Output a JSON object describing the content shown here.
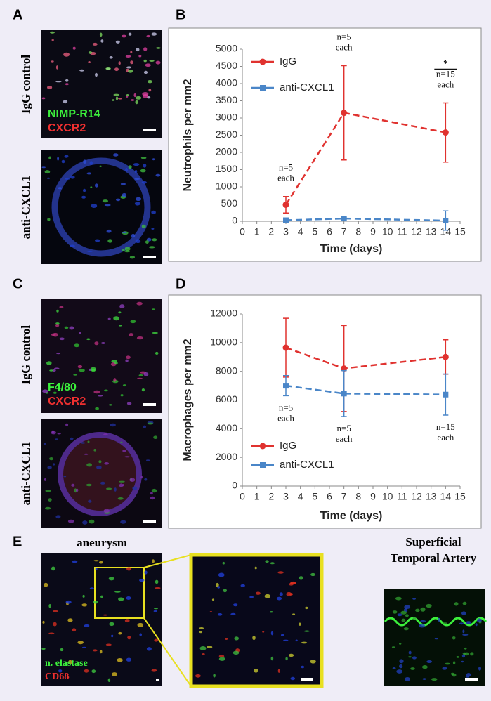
{
  "figure": {
    "panel_labels": [
      "A",
      "B",
      "C",
      "D",
      "E"
    ],
    "a": {
      "label_top": "IgG control",
      "label_bottom": "anti-CXCL1",
      "stain_green": "NIMP-R14",
      "stain_red": "CXCR2"
    },
    "c": {
      "label_top": "IgG control",
      "label_bottom": "anti-CXCL1",
      "stain_green": "F4/80",
      "stain_red": "CXCR2"
    },
    "e": {
      "title": "aneurysm",
      "stain_green": "n. elastase",
      "stain_red": "CD68",
      "right_title": [
        "Superficial",
        "Temporal Artery"
      ]
    }
  },
  "chart_data": [
    {
      "type": "line",
      "ylabel": "Neutrophils per mm2",
      "xlabel": "Time (days)",
      "xlim": [
        0,
        15
      ],
      "xticks": [
        0,
        1,
        2,
        3,
        4,
        5,
        6,
        7,
        8,
        9,
        10,
        11,
        12,
        13,
        14,
        15
      ],
      "ylim": [
        0,
        5000
      ],
      "yticks": [
        0,
        500,
        1000,
        1500,
        2000,
        2500,
        3000,
        3500,
        4000,
        4500,
        5000
      ],
      "legend": "upper left",
      "x": [
        3,
        7,
        14
      ],
      "series": [
        {
          "name": "IgG",
          "color": "#e0322f",
          "marker": "circle",
          "values": [
            480,
            3150,
            2580
          ],
          "errors": [
            240,
            1370,
            860
          ]
        },
        {
          "name": "anti-CXCL1",
          "color": "#4a86c8",
          "marker": "square",
          "values": [
            30,
            80,
            20
          ],
          "errors": [
            20,
            20,
            280
          ]
        }
      ],
      "annotations": [
        [
          "n=5",
          "each"
        ],
        [
          "n=5",
          "each"
        ],
        [
          "*",
          "n=15",
          "each"
        ]
      ]
    },
    {
      "type": "line",
      "ylabel": "Macrophages per mm2",
      "xlabel": "Time (days)",
      "xlim": [
        0,
        15
      ],
      "xticks": [
        0,
        1,
        2,
        3,
        4,
        5,
        6,
        7,
        8,
        9,
        10,
        11,
        12,
        13,
        14,
        15
      ],
      "ylim": [
        0,
        12000
      ],
      "yticks": [
        0,
        2000,
        4000,
        6000,
        8000,
        10000,
        12000
      ],
      "legend": "lower left",
      "x": [
        3,
        7,
        14
      ],
      "series": [
        {
          "name": "IgG",
          "color": "#e0322f",
          "marker": "circle",
          "values": [
            9650,
            8200,
            9000
          ],
          "errors": [
            2050,
            3000,
            1200
          ]
        },
        {
          "name": "anti-CXCL1",
          "color": "#4a86c8",
          "marker": "square",
          "values": [
            7000,
            6450,
            6380
          ],
          "errors": [
            700,
            1600,
            1430
          ]
        }
      ],
      "annotations": [
        [
          "n=5",
          "each"
        ],
        [
          "n=5",
          "each"
        ],
        [
          "n=15",
          "each"
        ]
      ]
    }
  ]
}
